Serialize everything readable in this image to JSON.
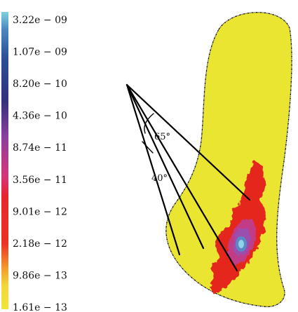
{
  "colorbar": {
    "ticks": [
      {
        "label": "3.22e − 09",
        "color": "#6fc7dc"
      },
      {
        "label": "1.07e − 09",
        "color": "#3a6db1"
      },
      {
        "label": "8.20e − 10",
        "color": "#273f8c"
      },
      {
        "label": "4.36e − 10",
        "color": "#3b2d82"
      },
      {
        "label": "8.74e − 11",
        "color": "#a347a8"
      },
      {
        "label": "3.56e − 11",
        "color": "#d03a7d"
      },
      {
        "label": "9.01e − 12",
        "color": "#e6262c"
      },
      {
        "label": "2.18e − 12",
        "color": "#ea3a23"
      },
      {
        "label": "9.86e − 13",
        "color": "#f59f2c"
      },
      {
        "label": "1.61e − 13",
        "color": "#efe63a"
      }
    ]
  },
  "angles": {
    "outer": "65°",
    "inner": "40°"
  },
  "colors": {
    "domain_fill": "#e9e530",
    "domain_outline": "#1a1a1a",
    "cone_lines": "#000000",
    "hot_red": "#e5271f",
    "hot_purple": "#9a4fae",
    "hot_blue": "#5b87c6",
    "hot_cyan": "#8fd3e6"
  }
}
